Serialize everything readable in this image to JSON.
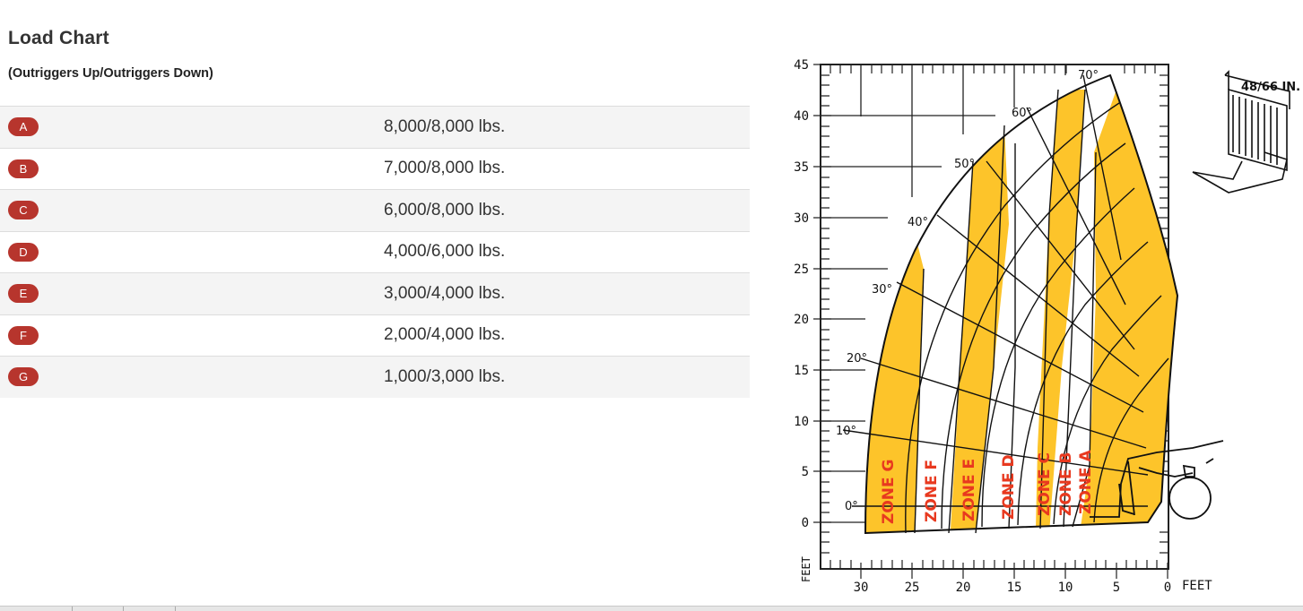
{
  "header": {
    "title": "Load Chart",
    "subtitle": "(Outriggers Up/Outriggers Down)"
  },
  "rows": [
    {
      "zone": "A",
      "capacity": "8,000/8,000 lbs."
    },
    {
      "zone": "B",
      "capacity": "7,000/8,000 lbs."
    },
    {
      "zone": "C",
      "capacity": "6,000/8,000 lbs."
    },
    {
      "zone": "D",
      "capacity": "4,000/6,000 lbs."
    },
    {
      "zone": "E",
      "capacity": "3,000/4,000 lbs."
    },
    {
      "zone": "F",
      "capacity": "2,000/4,000 lbs."
    },
    {
      "zone": "G",
      "capacity": "1,000/3,000 lbs."
    }
  ],
  "diagram": {
    "y_axis_ticks": [
      "0",
      "5",
      "10",
      "15",
      "20",
      "25",
      "30",
      "35",
      "40",
      "45"
    ],
    "x_axis_ticks": [
      "30",
      "25",
      "20",
      "15",
      "10",
      "5",
      "0"
    ],
    "axis_unit": "FEET",
    "angle_labels": [
      "0°",
      "10°",
      "20°",
      "30°",
      "40°",
      "50°",
      "60°",
      "70°"
    ],
    "zone_labels": [
      "ZONE G",
      "ZONE F",
      "ZONE E",
      "ZONE D",
      "ZONE C",
      "ZONE B",
      "ZONE A"
    ],
    "fork_label": "48/66 IN.",
    "colors": {
      "zone_fill": "#fdc42a",
      "zone_text": "#e8391f",
      "badge": "#b7352d"
    }
  }
}
